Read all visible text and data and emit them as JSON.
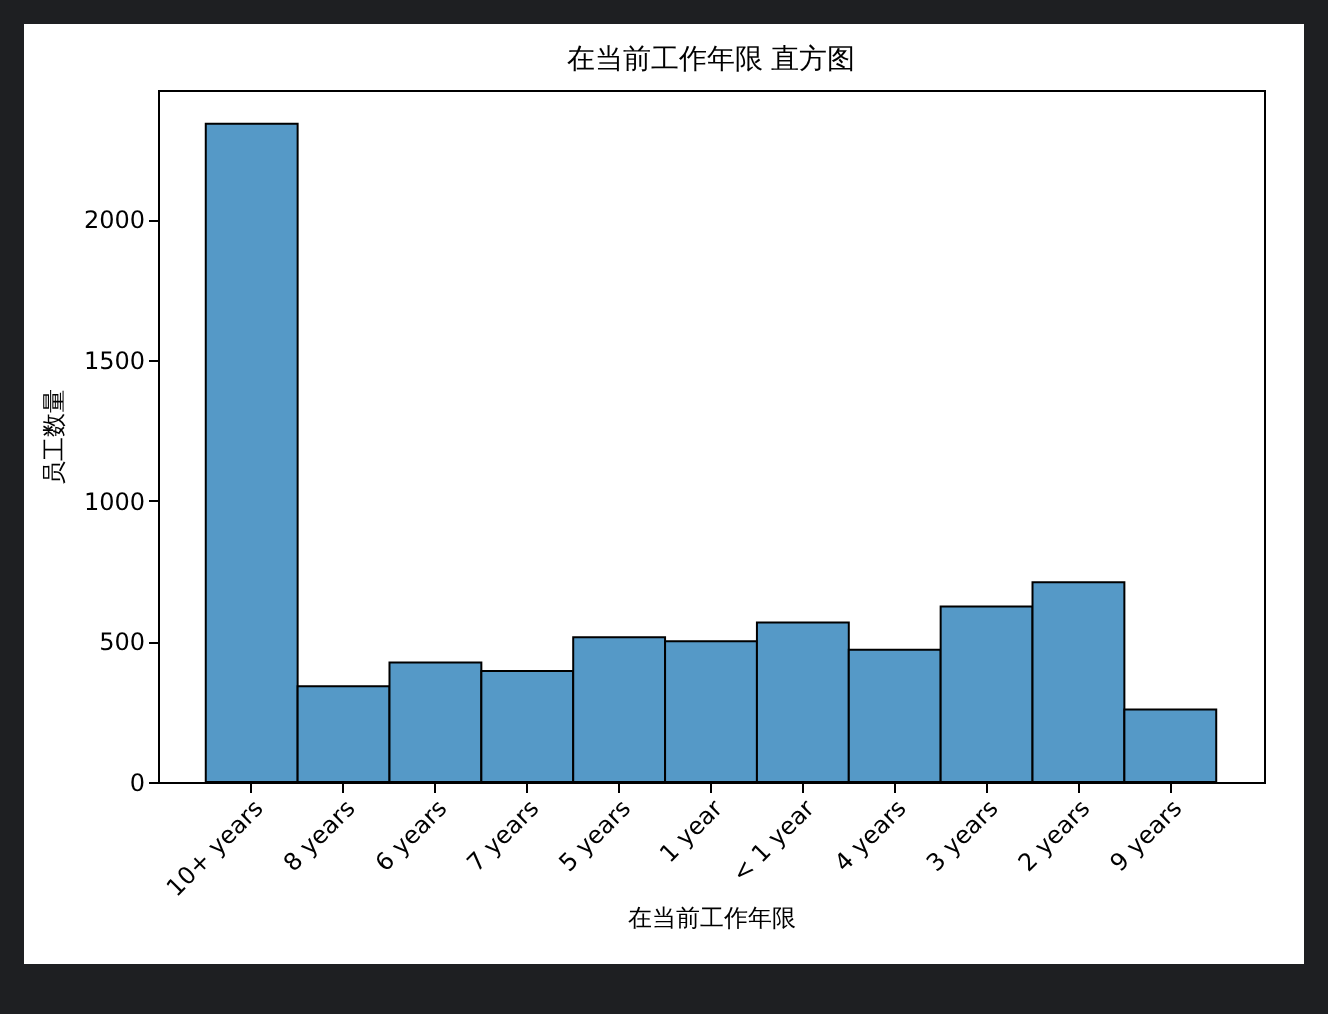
{
  "chart_data": {
    "type": "bar",
    "title": "在当前工作年限 直方图",
    "xlabel": "在当前工作年限",
    "ylabel": "员工数量",
    "categories": [
      "10+ years",
      "8 years",
      "6 years",
      "7 years",
      "5 years",
      "1 year",
      "< 1 year",
      "4 years",
      "3 years",
      "2 years",
      "9 years"
    ],
    "values": [
      2340,
      340,
      425,
      395,
      515,
      500,
      567,
      470,
      624,
      710,
      258
    ],
    "color": "#5599c7",
    "ylim": [
      0,
      2460
    ],
    "yticks": [
      0,
      500,
      1000,
      1500,
      2000
    ],
    "grid": false
  }
}
